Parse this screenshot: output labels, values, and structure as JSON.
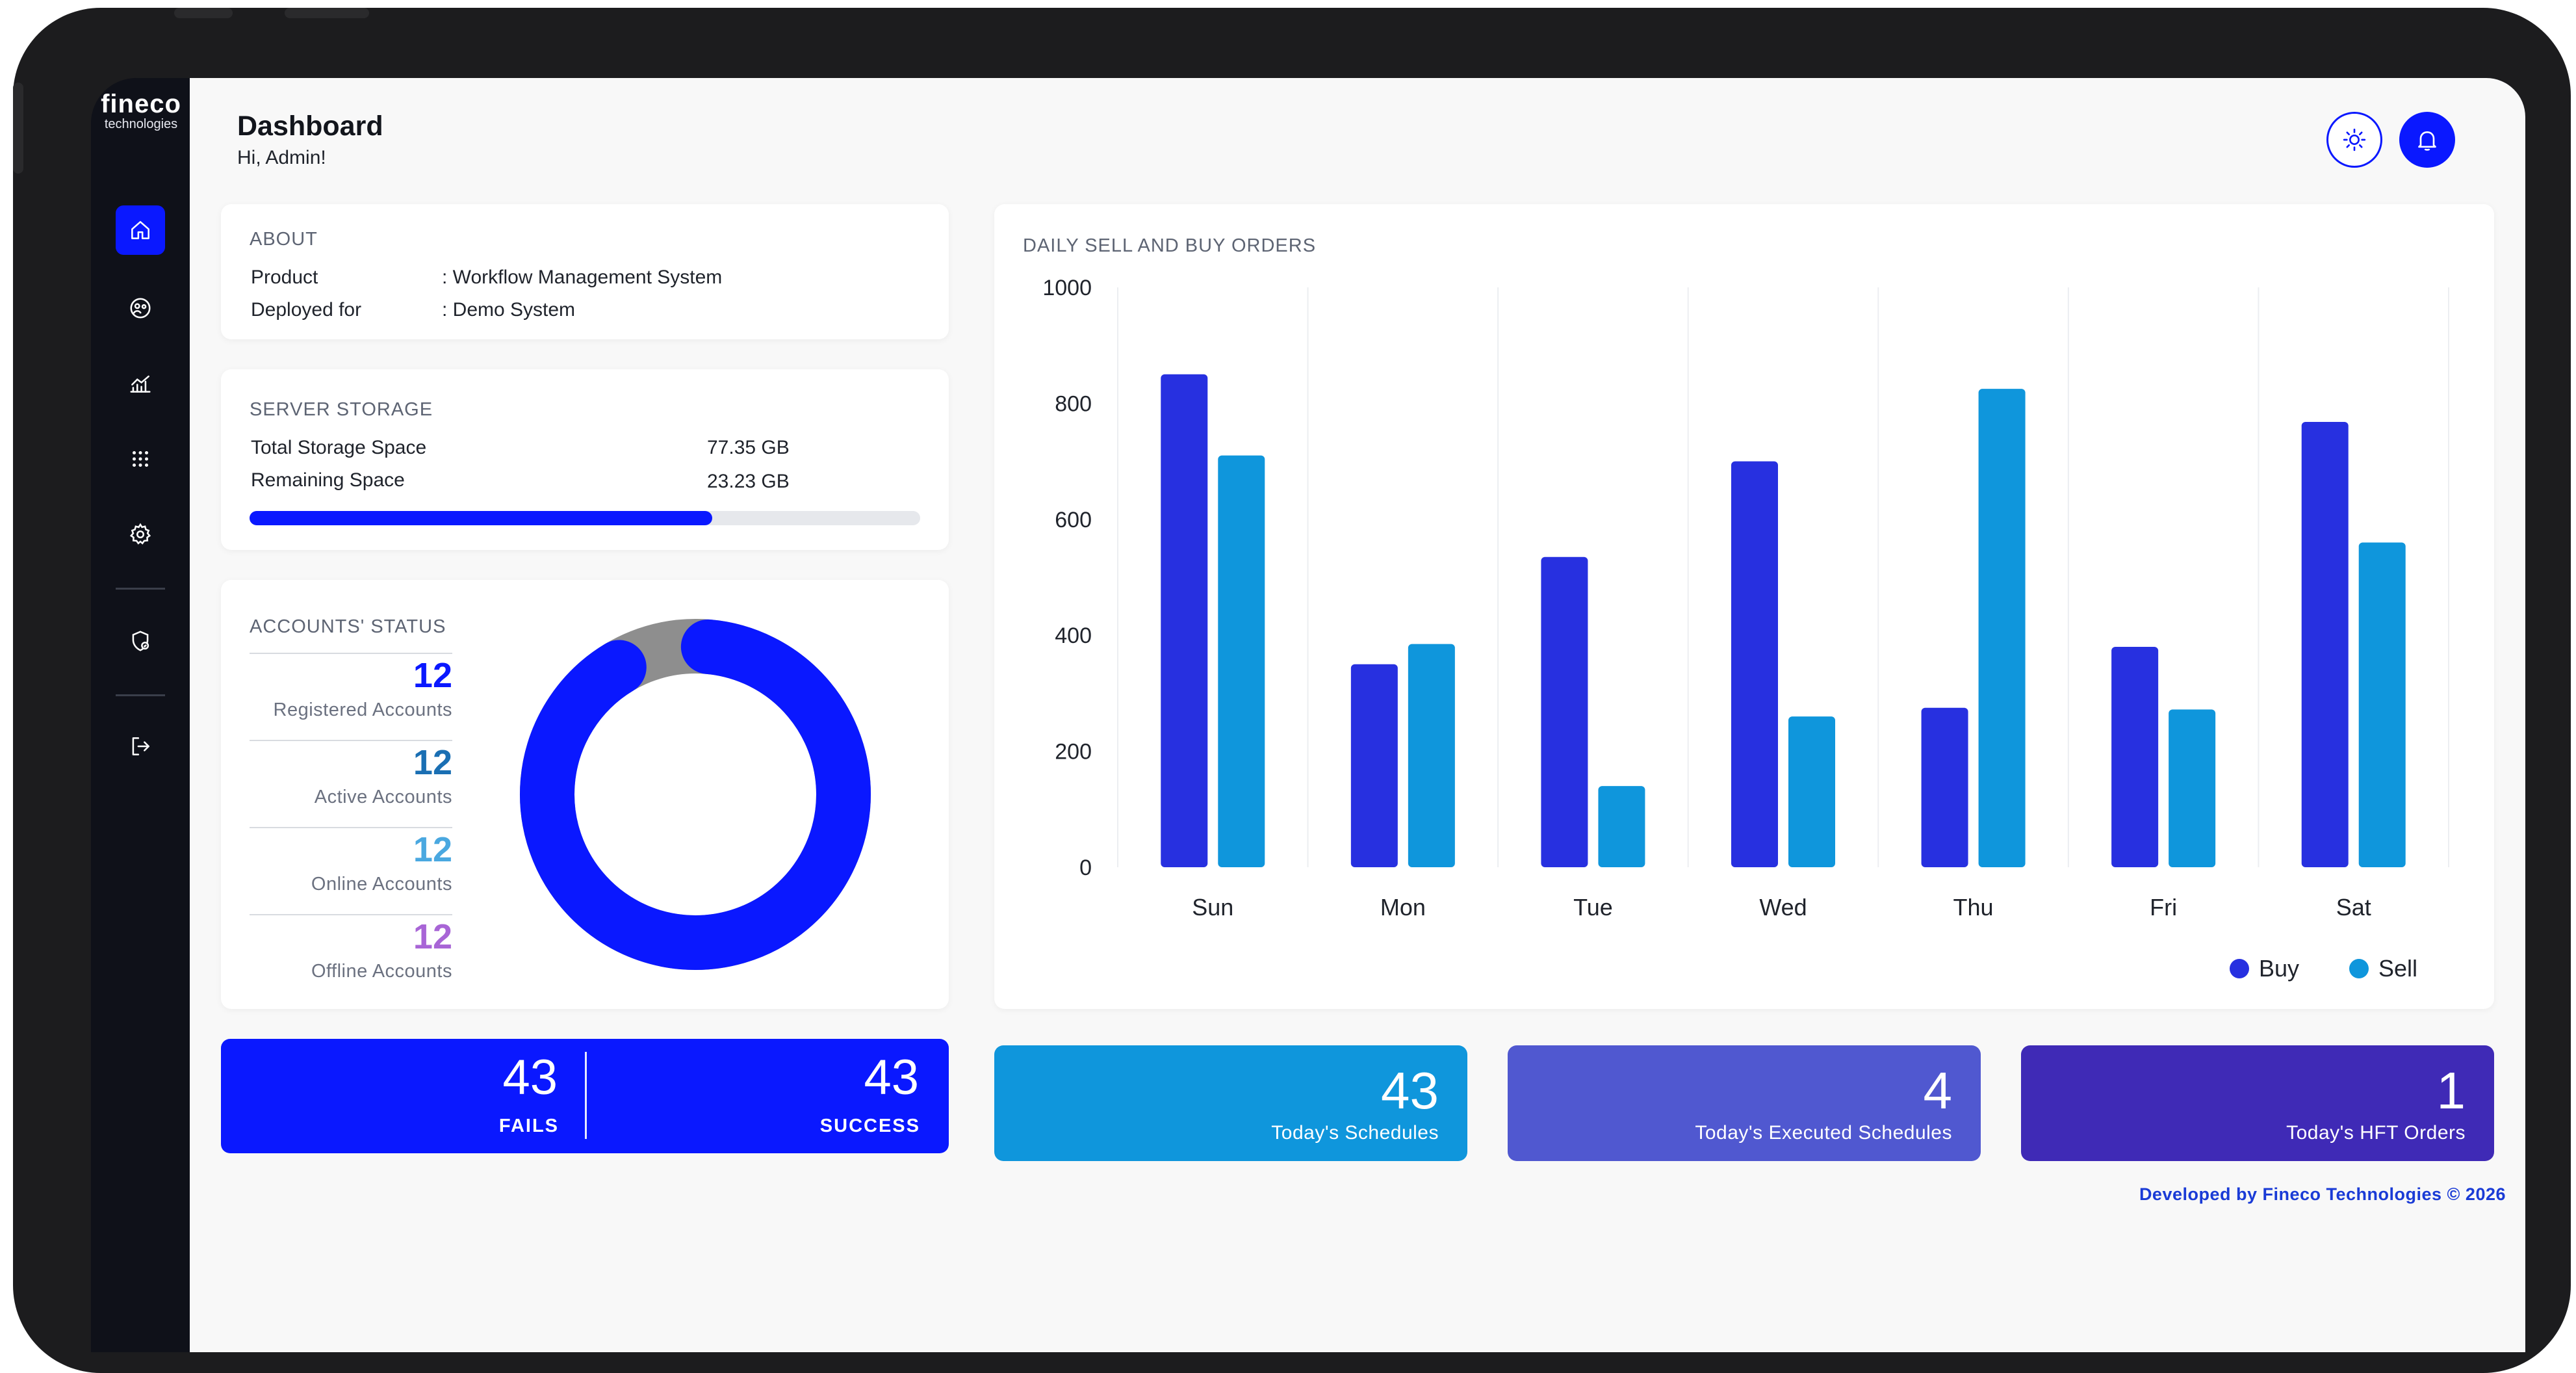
{
  "brand": {
    "name": "fineco",
    "tagline": "technologies"
  },
  "sidebar": {
    "items": [
      {
        "icon": "home-icon",
        "active": true
      },
      {
        "icon": "user-circle-icon",
        "active": false
      },
      {
        "icon": "chart-icon",
        "active": false
      },
      {
        "icon": "grid-icon",
        "active": false
      },
      {
        "icon": "gear-icon",
        "active": false
      },
      {
        "icon": "shield-icon",
        "active": false
      },
      {
        "icon": "logout-icon",
        "active": false
      }
    ]
  },
  "header": {
    "title": "Dashboard",
    "greeting": "Hi, Admin!"
  },
  "about": {
    "title": "ABOUT",
    "rows": [
      {
        "label": "Product",
        "value": ": Workflow Management System"
      },
      {
        "label": "Deployed for",
        "value": ": Demo System"
      }
    ]
  },
  "storage": {
    "title": "SERVER STORAGE",
    "total_label": "Total Storage Space",
    "total_value": "77.35 GB",
    "remaining_label": "Remaining Space",
    "remaining_value": "23.23 GB",
    "used_fraction": 0.69
  },
  "accounts": {
    "title": "ACCOUNTS' STATUS",
    "stats": [
      {
        "value": "12",
        "label": "Registered Accounts",
        "color": "#0a18ff"
      },
      {
        "value": "12",
        "label": "Active Accounts",
        "color": "#1a6fb3"
      },
      {
        "value": "12",
        "label": "Online Accounts",
        "color": "#4aa8e0"
      },
      {
        "value": "12",
        "label": "Offline Accounts",
        "color": "#a865d6"
      }
    ],
    "donut": {
      "active_fraction": 0.9,
      "active_color": "#0a18ff",
      "rest_color": "#8e8e8e"
    }
  },
  "chart_data": {
    "type": "bar",
    "title": "DAILY SELL AND BUY ORDERS",
    "categories": [
      "Sun",
      "Mon",
      "Tue",
      "Wed",
      "Thu",
      "Fri",
      "Sat"
    ],
    "series": [
      {
        "name": "Buy",
        "color": "#2730e0",
        "values": [
          850,
          350,
          535,
          700,
          275,
          380,
          768
        ]
      },
      {
        "name": "Sell",
        "color": "#0f96dc",
        "values": [
          710,
          385,
          140,
          260,
          825,
          272,
          560
        ]
      }
    ],
    "y_ticks": [
      "0",
      "200",
      "400",
      "600",
      "800",
      "1000"
    ],
    "ylim": [
      0,
      1000
    ],
    "legend_position": "bottom-right",
    "grid": "vertical"
  },
  "fails_success": {
    "fails_value": "43",
    "fails_label": "FAILS",
    "success_value": "43",
    "success_label": "SUCCESS"
  },
  "tiles": [
    {
      "value": "43",
      "label": "Today's Schedules",
      "color": "#0f96dc"
    },
    {
      "value": "4",
      "label": "Today's Executed Schedules",
      "color": "#5058d0"
    },
    {
      "value": "1",
      "label": "Today's HFT Orders",
      "color": "#3f2ab6"
    }
  ],
  "footer": "Developed by Fineco Technologies © 2026"
}
